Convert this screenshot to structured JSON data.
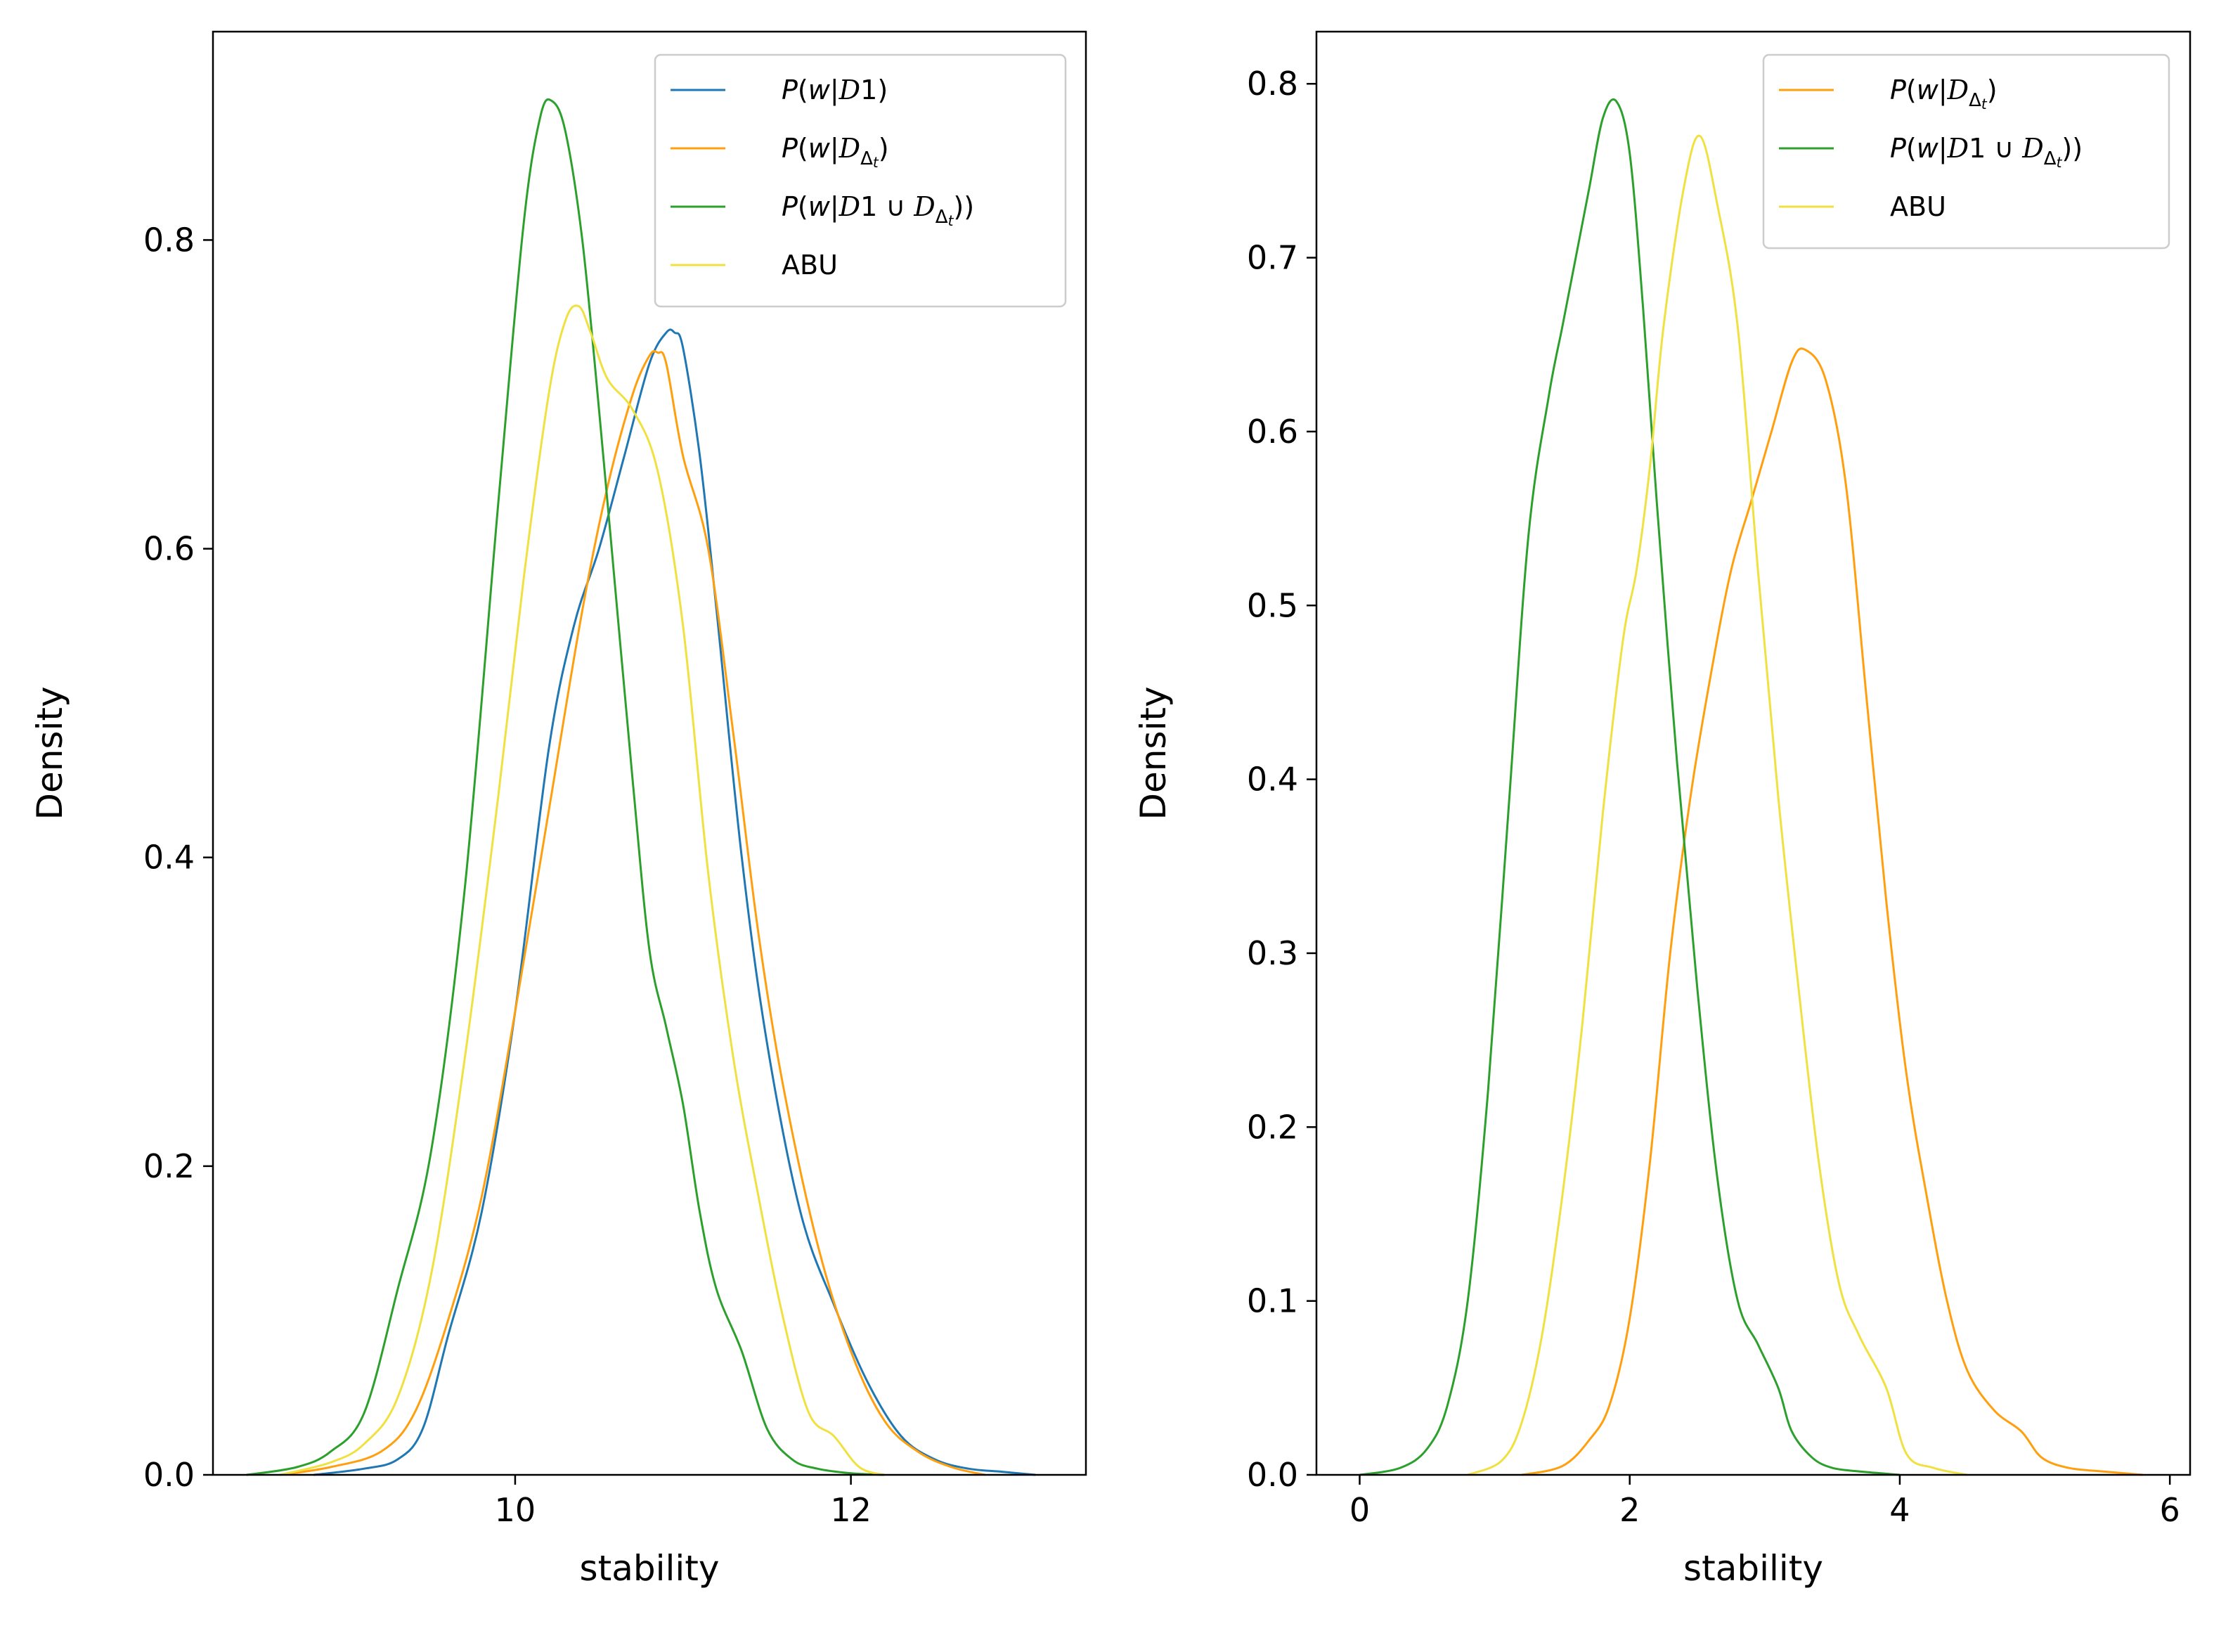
{
  "chart_data": [
    {
      "type": "line",
      "xlabel": "stability",
      "ylabel": "Density",
      "xlim": [
        8.2,
        13.4
      ],
      "ylim": [
        0,
        0.935
      ],
      "xticks": [
        10,
        12
      ],
      "yticks": [
        0.0,
        0.2,
        0.4,
        0.6,
        0.8
      ],
      "legend_position": "top-right",
      "series": [
        {
          "name": "P(w|D1)",
          "color": "#1f77b4",
          "x": [
            8.8,
            9.1,
            9.3,
            9.45,
            9.6,
            9.8,
            10.0,
            10.2,
            10.35,
            10.5,
            10.65,
            10.8,
            10.9,
            10.95,
            11.0,
            11.1,
            11.2,
            11.35,
            11.5,
            11.7,
            11.9,
            12.1,
            12.3,
            12.5,
            12.7,
            12.9,
            13.1
          ],
          "y": [
            0.0,
            0.004,
            0.01,
            0.03,
            0.09,
            0.17,
            0.3,
            0.47,
            0.55,
            0.6,
            0.66,
            0.72,
            0.74,
            0.74,
            0.73,
            0.66,
            0.56,
            0.4,
            0.28,
            0.17,
            0.11,
            0.06,
            0.025,
            0.01,
            0.004,
            0.002,
            0.0
          ]
        },
        {
          "name": "P(w|DΔt)",
          "color": "#ff9f0e",
          "x": [
            8.6,
            8.9,
            9.2,
            9.4,
            9.6,
            9.8,
            10.0,
            10.2,
            10.4,
            10.55,
            10.7,
            10.8,
            10.85,
            10.9,
            11.0,
            11.15,
            11.3,
            11.45,
            11.6,
            11.8,
            12.0,
            12.2,
            12.4,
            12.6,
            12.8
          ],
          "y": [
            0.0,
            0.005,
            0.015,
            0.04,
            0.1,
            0.18,
            0.3,
            0.43,
            0.56,
            0.64,
            0.7,
            0.725,
            0.727,
            0.72,
            0.66,
            0.6,
            0.48,
            0.35,
            0.25,
            0.15,
            0.08,
            0.035,
            0.015,
            0.005,
            0.0
          ]
        },
        {
          "name": "P(w|D1 ∪ DΔt))",
          "color": "#2ca02c",
          "x": [
            8.4,
            8.7,
            8.9,
            9.1,
            9.3,
            9.5,
            9.7,
            9.9,
            10.05,
            10.15,
            10.22,
            10.3,
            10.4,
            10.5,
            10.6,
            10.7,
            10.8,
            10.9,
            11.0,
            11.1,
            11.2,
            11.35,
            11.5,
            11.65,
            11.8,
            12.0,
            12.2
          ],
          "y": [
            0.0,
            0.005,
            0.015,
            0.04,
            0.12,
            0.21,
            0.38,
            0.63,
            0.81,
            0.88,
            0.89,
            0.87,
            0.8,
            0.69,
            0.57,
            0.45,
            0.34,
            0.29,
            0.24,
            0.17,
            0.12,
            0.08,
            0.03,
            0.01,
            0.004,
            0.001,
            0.0
          ]
        },
        {
          "name": "ABU",
          "color": "#f0e140",
          "x": [
            8.6,
            8.9,
            9.1,
            9.3,
            9.5,
            9.7,
            9.9,
            10.05,
            10.2,
            10.3,
            10.38,
            10.45,
            10.55,
            10.7,
            10.85,
            11.0,
            11.15,
            11.3,
            11.45,
            11.6,
            11.75,
            11.9,
            12.05,
            12.2
          ],
          "y": [
            0.0,
            0.008,
            0.02,
            0.05,
            0.13,
            0.27,
            0.44,
            0.58,
            0.7,
            0.748,
            0.757,
            0.74,
            0.71,
            0.69,
            0.65,
            0.55,
            0.39,
            0.27,
            0.18,
            0.1,
            0.04,
            0.025,
            0.005,
            0.0
          ]
        }
      ]
    },
    {
      "type": "line",
      "xlabel": "stability",
      "ylabel": "Density",
      "xlim": [
        -0.32,
        6.15
      ],
      "ylim": [
        0,
        0.83
      ],
      "xticks": [
        0,
        2,
        4,
        6
      ],
      "yticks": [
        0.0,
        0.1,
        0.2,
        0.3,
        0.4,
        0.5,
        0.6,
        0.7,
        0.8
      ],
      "legend_position": "top-right",
      "series": [
        {
          "name": "P(w|DΔt)",
          "color": "#ff9f0e",
          "x": [
            1.2,
            1.5,
            1.7,
            1.85,
            2.0,
            2.15,
            2.3,
            2.45,
            2.6,
            2.75,
            2.9,
            3.05,
            3.2,
            3.3,
            3.45,
            3.6,
            3.75,
            3.9,
            4.05,
            4.2,
            4.35,
            4.5,
            4.7,
            4.9,
            5.05,
            5.25,
            5.5,
            5.8
          ],
          "y": [
            0.0,
            0.005,
            0.02,
            0.04,
            0.09,
            0.18,
            0.3,
            0.39,
            0.46,
            0.52,
            0.56,
            0.6,
            0.64,
            0.647,
            0.63,
            0.57,
            0.45,
            0.33,
            0.23,
            0.16,
            0.1,
            0.06,
            0.037,
            0.025,
            0.01,
            0.004,
            0.002,
            0.0
          ]
        },
        {
          "name": "P(w|D1 ∪ DΔt))",
          "color": "#2ca02c",
          "x": [
            0.0,
            0.3,
            0.5,
            0.65,
            0.8,
            0.95,
            1.1,
            1.25,
            1.4,
            1.5,
            1.6,
            1.7,
            1.8,
            1.9,
            2.0,
            2.1,
            2.2,
            2.35,
            2.5,
            2.65,
            2.8,
            2.95,
            3.1,
            3.2,
            3.35,
            3.5,
            3.7,
            4.0
          ],
          "y": [
            0.0,
            0.004,
            0.015,
            0.04,
            0.1,
            0.22,
            0.38,
            0.54,
            0.62,
            0.66,
            0.7,
            0.74,
            0.78,
            0.79,
            0.76,
            0.67,
            0.56,
            0.41,
            0.28,
            0.17,
            0.1,
            0.075,
            0.05,
            0.025,
            0.01,
            0.004,
            0.002,
            0.0
          ]
        },
        {
          "name": "ABU",
          "color": "#f0e140",
          "x": [
            0.8,
            1.05,
            1.2,
            1.35,
            1.5,
            1.65,
            1.8,
            1.95,
            2.05,
            2.15,
            2.25,
            2.4,
            2.52,
            2.65,
            2.8,
            2.95,
            3.1,
            3.25,
            3.4,
            3.55,
            3.7,
            3.9,
            4.05,
            4.25,
            4.5
          ],
          "y": [
            0.0,
            0.008,
            0.03,
            0.08,
            0.16,
            0.26,
            0.38,
            0.48,
            0.52,
            0.58,
            0.66,
            0.74,
            0.77,
            0.73,
            0.66,
            0.52,
            0.39,
            0.28,
            0.18,
            0.11,
            0.08,
            0.05,
            0.012,
            0.004,
            0.0
          ]
        }
      ]
    }
  ]
}
